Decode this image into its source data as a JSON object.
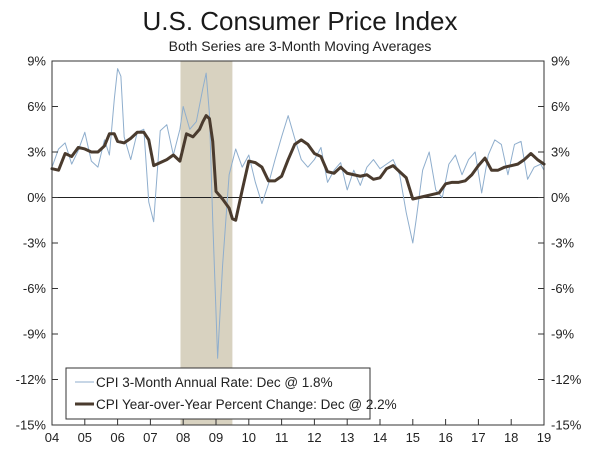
{
  "chart_data": {
    "type": "line",
    "title": "U.S. Consumer Price Index",
    "subtitle": "Both Series are 3-Month Moving Averages",
    "xlabel": "",
    "ylabel": "",
    "x_range": [
      2004.0,
      2019.0
    ],
    "ylim": [
      -15,
      9
    ],
    "y_ticks": [
      9,
      6,
      3,
      0,
      -3,
      -6,
      -9,
      -12,
      -15
    ],
    "y_tick_labels": [
      "9%",
      "6%",
      "3%",
      "0%",
      "-3%",
      "-6%",
      "-9%",
      "-12%",
      "-15%"
    ],
    "x_tick_labels": [
      "04",
      "05",
      "06",
      "07",
      "08",
      "09",
      "10",
      "11",
      "12",
      "13",
      "14",
      "15",
      "16",
      "17",
      "18",
      "19"
    ],
    "grid": false,
    "zero_line": true,
    "legend_position": "bottom-left",
    "shaded_region": {
      "label": "recession",
      "x_start": 2007.917,
      "x_end": 2009.5,
      "color": "#d8d2c0"
    },
    "series": [
      {
        "name": "CPI 3-Month Annual Rate: Dec @ 1.8%",
        "color": "#8faecd",
        "stroke_width": 1,
        "x": [
          2004.0,
          2004.2,
          2004.4,
          2004.6,
          2004.8,
          2005.0,
          2005.2,
          2005.4,
          2005.6,
          2005.75,
          2005.9,
          2006.0,
          2006.1,
          2006.2,
          2006.4,
          2006.6,
          2006.8,
          2006.95,
          2007.1,
          2007.3,
          2007.5,
          2007.7,
          2007.9,
          2008.0,
          2008.2,
          2008.4,
          2008.6,
          2008.7,
          2008.8,
          2008.9,
          2009.05,
          2009.2,
          2009.4,
          2009.6,
          2009.8,
          2010.0,
          2010.2,
          2010.4,
          2010.6,
          2010.8,
          2011.0,
          2011.2,
          2011.4,
          2011.6,
          2011.8,
          2012.0,
          2012.2,
          2012.4,
          2012.6,
          2012.8,
          2013.0,
          2013.2,
          2013.4,
          2013.6,
          2013.8,
          2014.0,
          2014.2,
          2014.4,
          2014.6,
          2014.8,
          2015.0,
          2015.1,
          2015.3,
          2015.5,
          2015.7,
          2015.9,
          2016.1,
          2016.3,
          2016.5,
          2016.7,
          2016.9,
          2017.1,
          2017.3,
          2017.5,
          2017.7,
          2017.9,
          2018.1,
          2018.3,
          2018.5,
          2018.7,
          2018.9,
          2019.0
        ],
        "values": [
          2.0,
          3.2,
          3.6,
          2.2,
          3.1,
          4.3,
          2.4,
          2.0,
          3.8,
          2.8,
          6.5,
          8.5,
          8.0,
          4.0,
          2.5,
          4.3,
          4.5,
          -0.3,
          -1.6,
          4.4,
          4.8,
          2.8,
          4.5,
          6.0,
          4.5,
          5.0,
          7.2,
          8.2,
          5.5,
          -1.5,
          -10.6,
          -4.5,
          1.5,
          3.2,
          2.0,
          2.8,
          1.0,
          -0.4,
          0.9,
          2.5,
          4.0,
          5.4,
          3.9,
          2.5,
          2.0,
          2.5,
          3.3,
          1.0,
          1.8,
          2.3,
          0.5,
          1.8,
          0.8,
          2.0,
          2.5,
          1.9,
          2.2,
          2.5,
          1.5,
          -1.0,
          -3.0,
          -1.5,
          1.8,
          3.0,
          0.5,
          0.0,
          2.2,
          2.8,
          1.5,
          2.5,
          3.0,
          0.3,
          2.8,
          3.8,
          3.5,
          1.5,
          3.5,
          3.7,
          1.2,
          2.0,
          2.2,
          1.8
        ]
      },
      {
        "name": "CPI Year-over-Year Percent Change: Dec @ 2.2%",
        "color": "#4a3b2e",
        "stroke_width": 3,
        "x": [
          2004.0,
          2004.2,
          2004.4,
          2004.6,
          2004.8,
          2005.0,
          2005.2,
          2005.4,
          2005.6,
          2005.75,
          2005.9,
          2006.0,
          2006.2,
          2006.4,
          2006.6,
          2006.8,
          2006.95,
          2007.1,
          2007.3,
          2007.5,
          2007.7,
          2007.9,
          2008.1,
          2008.3,
          2008.5,
          2008.6,
          2008.7,
          2008.8,
          2008.9,
          2009.0,
          2009.2,
          2009.4,
          2009.5,
          2009.6,
          2009.8,
          2010.0,
          2010.2,
          2010.4,
          2010.6,
          2010.8,
          2011.0,
          2011.2,
          2011.4,
          2011.6,
          2011.8,
          2012.0,
          2012.2,
          2012.4,
          2012.6,
          2012.8,
          2013.0,
          2013.2,
          2013.4,
          2013.6,
          2013.8,
          2014.0,
          2014.2,
          2014.4,
          2014.6,
          2014.8,
          2015.0,
          2015.2,
          2015.4,
          2015.6,
          2015.8,
          2016.0,
          2016.2,
          2016.4,
          2016.6,
          2016.8,
          2017.0,
          2017.2,
          2017.4,
          2017.6,
          2017.8,
          2018.0,
          2018.2,
          2018.4,
          2018.6,
          2018.8,
          2019.0
        ],
        "values": [
          1.9,
          1.8,
          2.9,
          2.7,
          3.3,
          3.2,
          3.0,
          3.0,
          3.4,
          4.2,
          4.2,
          3.7,
          3.6,
          3.9,
          4.3,
          4.3,
          3.8,
          2.1,
          2.3,
          2.5,
          2.8,
          2.4,
          4.2,
          4.0,
          4.5,
          5.0,
          5.4,
          5.2,
          3.7,
          0.4,
          -0.1,
          -0.7,
          -1.4,
          -1.5,
          0.5,
          2.4,
          2.3,
          2.0,
          1.1,
          1.1,
          1.4,
          2.5,
          3.5,
          3.8,
          3.5,
          2.9,
          2.7,
          1.7,
          1.6,
          2.0,
          1.6,
          1.5,
          1.4,
          1.5,
          1.2,
          1.3,
          1.9,
          2.1,
          1.7,
          1.3,
          -0.1,
          0.0,
          0.1,
          0.2,
          0.3,
          0.9,
          1.0,
          1.0,
          1.1,
          1.5,
          2.1,
          2.6,
          1.8,
          1.8,
          2.0,
          2.1,
          2.2,
          2.5,
          2.9,
          2.5,
          2.2
        ]
      }
    ]
  }
}
